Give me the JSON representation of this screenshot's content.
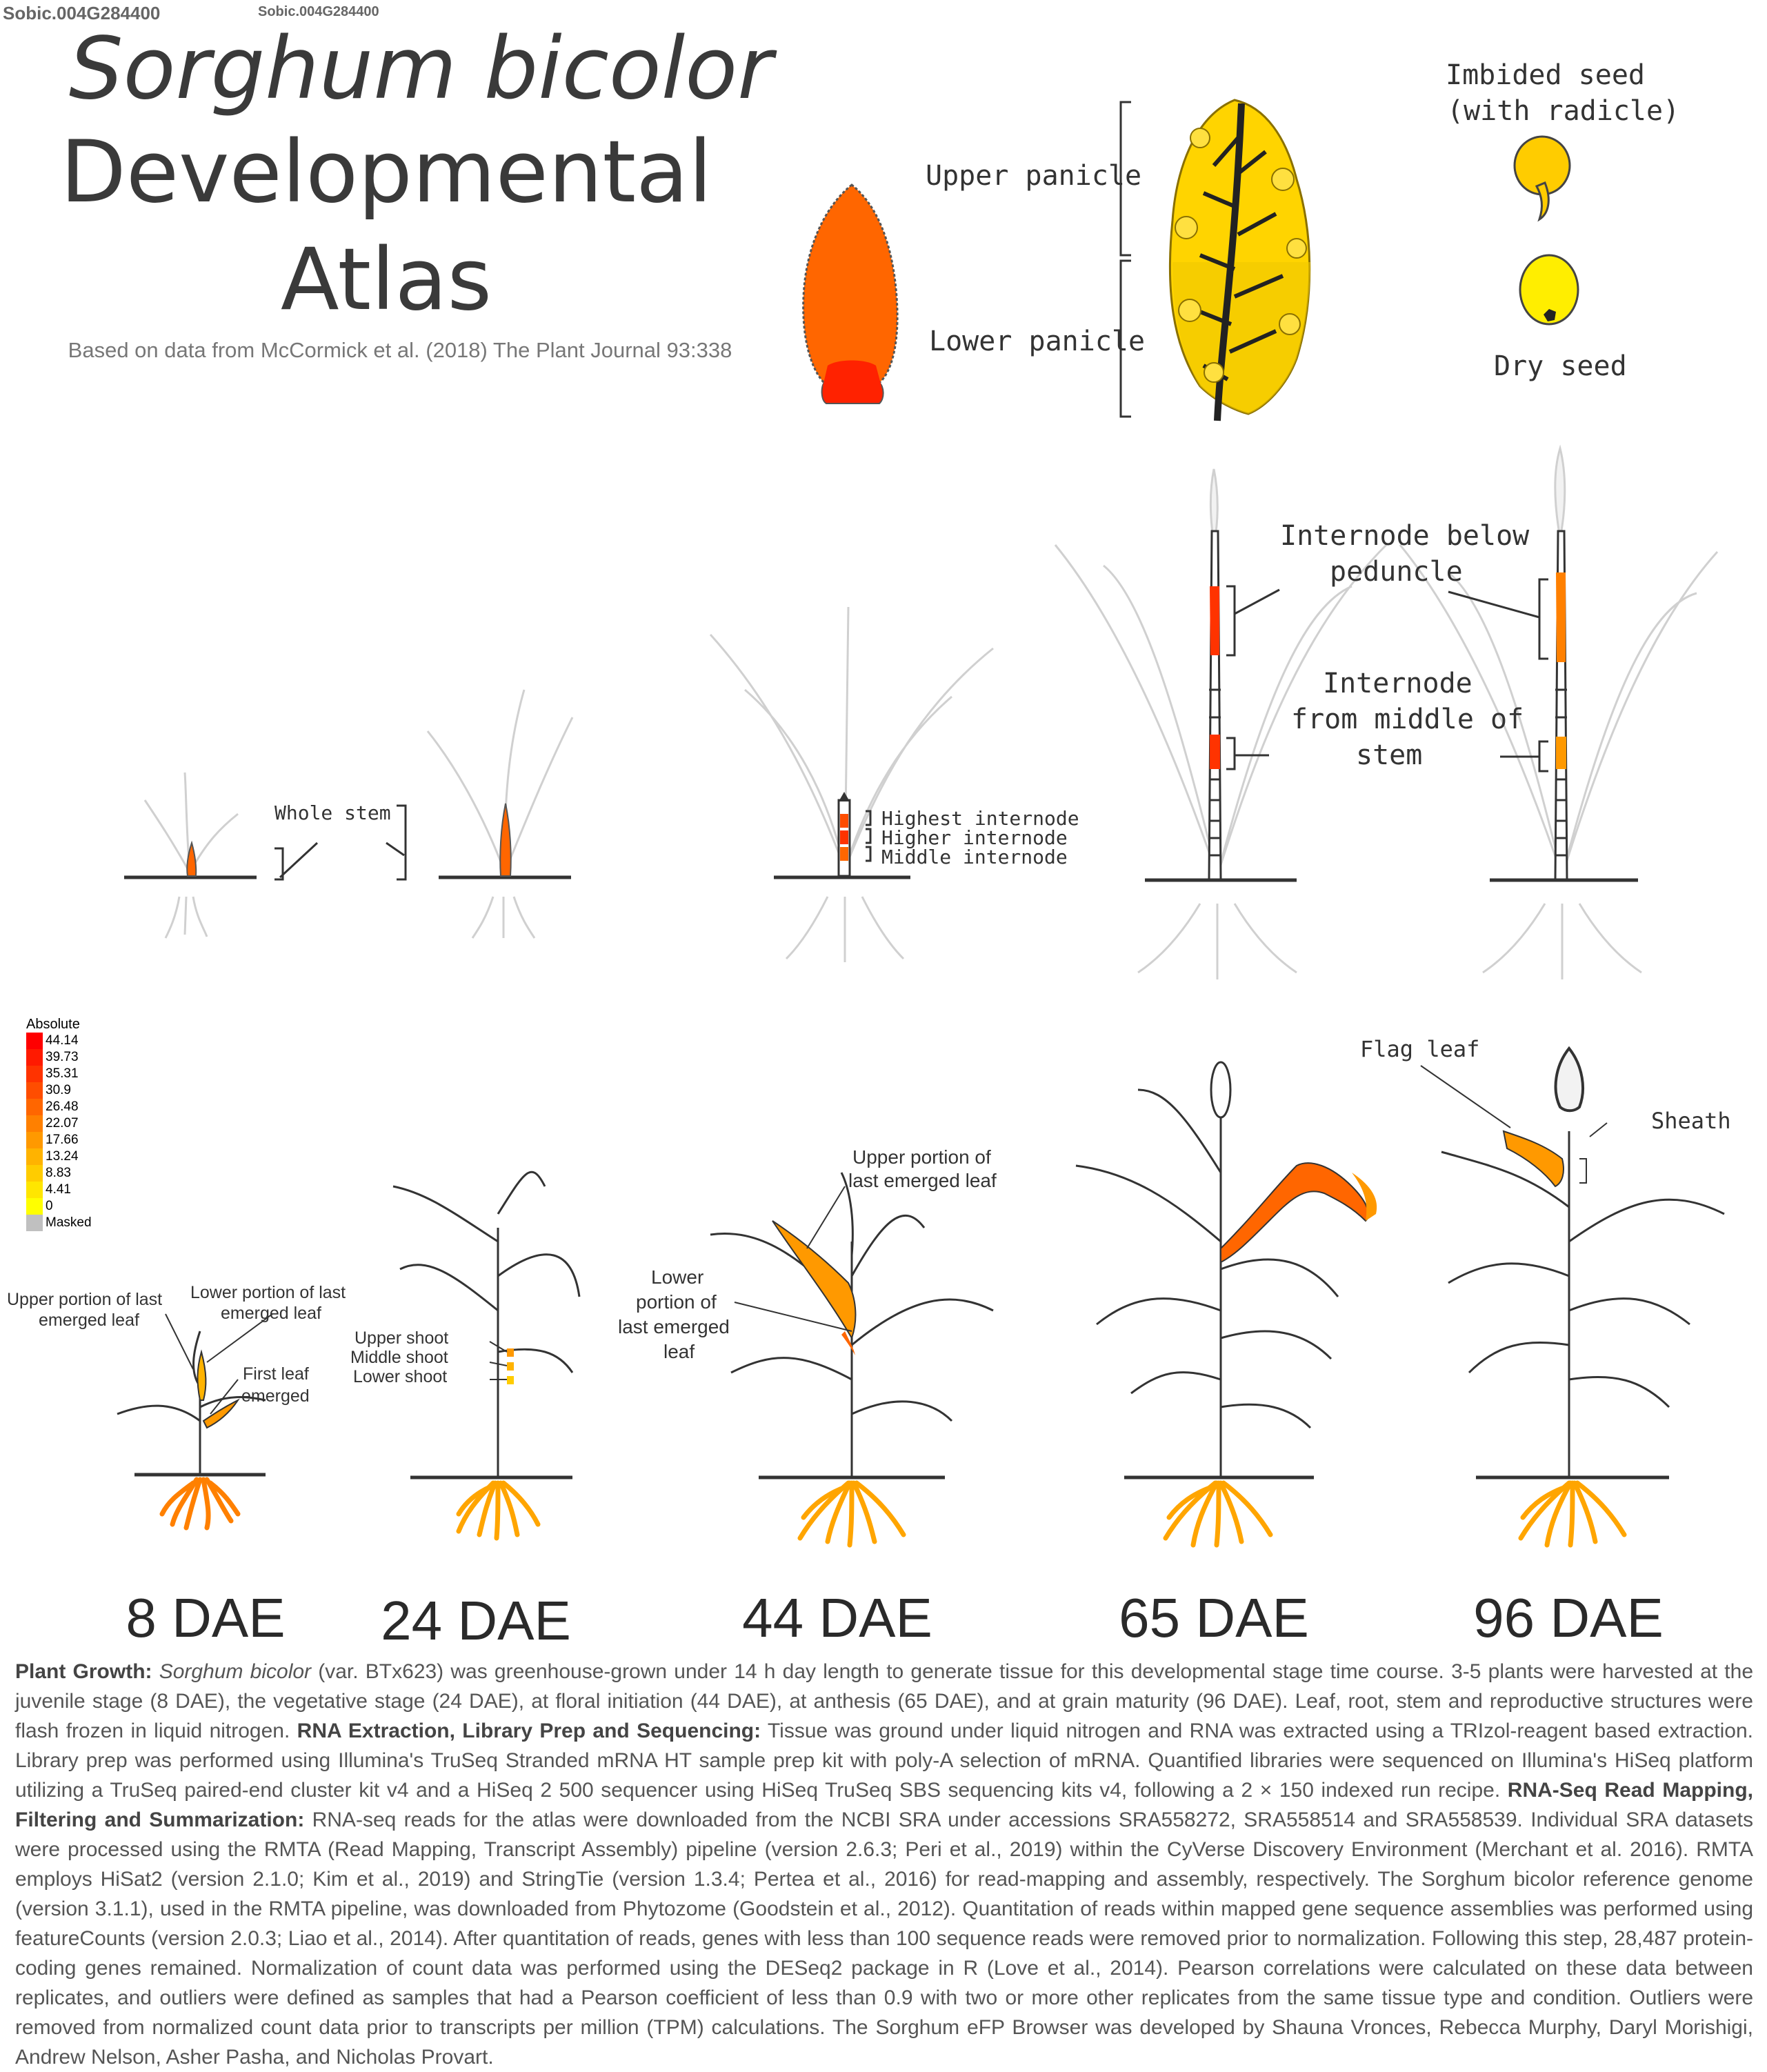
{
  "gene_id": "Sobic.004G284400",
  "gene_id_small": "Sobic.004G284400",
  "title": {
    "species": "Sorghum bicolor",
    "line2": "Developmental",
    "line3": "Atlas",
    "subtitle": "Based on data from McCormick et al. (2018) The Plant Journal 93:338"
  },
  "labels": {
    "upper_panicle": "Upper panicle",
    "lower_panicle": "Lower panicle",
    "imbibed_seed_1": "Imbided seed",
    "imbibed_seed_2": "(with radicle)",
    "dry_seed": "Dry seed",
    "whole_stem": "Whole stem",
    "highest_internode": "Highest internode",
    "higher_internode": "Higher internode",
    "middle_internode": "Middle internode",
    "internode_below_1": "Internode below",
    "internode_below_2": "peduncle",
    "internode_middle_1": "Internode",
    "internode_middle_2": "from middle of",
    "internode_middle_3": "stem",
    "flag_leaf": "Flag leaf",
    "sheath": "Sheath",
    "upper_portion_8_1": "Upper portion of last",
    "upper_portion_8_2": "emerged leaf",
    "lower_portion_8_1": "Lower portion of last",
    "lower_portion_8_2": "emerged leaf",
    "first_leaf_1": "First leaf",
    "first_leaf_2": "emerged",
    "upper_shoot": "Upper shoot",
    "middle_shoot": "Middle shoot",
    "lower_shoot": "Lower shoot",
    "upper_portion_44_1": "Upper portion of",
    "upper_portion_44_2": "last emerged leaf",
    "lower_portion_44_1": "Lower",
    "lower_portion_44_2": "portion of",
    "lower_portion_44_3": "last emerged",
    "lower_portion_44_4": "leaf"
  },
  "stages": [
    "8 DAE",
    "24 DAE",
    "44 DAE",
    "65 DAE",
    "96 DAE"
  ],
  "legend": {
    "title": "Absolute",
    "entries": [
      {
        "value": "44.14",
        "color": "#ff0000"
      },
      {
        "value": "39.73",
        "color": "#ff1a00"
      },
      {
        "value": "35.31",
        "color": "#ff3300"
      },
      {
        "value": "30.9",
        "color": "#ff4d00"
      },
      {
        "value": "26.48",
        "color": "#ff6600"
      },
      {
        "value": "22.07",
        "color": "#ff8000"
      },
      {
        "value": "17.66",
        "color": "#ff9900"
      },
      {
        "value": "13.24",
        "color": "#ffb300"
      },
      {
        "value": "8.83",
        "color": "#ffcc00"
      },
      {
        "value": "4.41",
        "color": "#ffe600"
      },
      {
        "value": "0",
        "color": "#ffff00"
      },
      {
        "value": "Masked",
        "color": "#c0c0c0"
      }
    ]
  },
  "caption": {
    "h1": "Plant Growth:",
    "species": "Sorghum bicolor",
    "p1": " (var. BTx623) was greenhouse-grown under 14 h day length to generate tissue for this developmental stage time course. 3-5 plants were harvested at the juvenile stage (8 DAE), the vegetative stage (24 DAE), at floral initiation (44 DAE), at anthesis (65 DAE), and at grain maturity (96 DAE). Leaf, root, stem and reproductive structures were flash frozen in liquid nitrogen. ",
    "h2": "RNA Extraction, Library Prep and Sequencing:",
    "p2": " Tissue was ground under liquid nitrogen and RNA was extracted using a TRIzol-reagent based extraction. Library prep was performed using Illumina's TruSeq Stranded mRNA HT sample prep kit with poly-A selection of mRNA. Quantified libraries were sequenced on Illumina's HiSeq platform utilizing a TruSeq paired-end cluster kit v4 and a HiSeq 2 500 sequencer using HiSeq TruSeq SBS sequencing kits v4, following a 2 × 150 indexed run recipe. ",
    "h3": "RNA-Seq Read Mapping, Filtering and Summarization:",
    "p3": " RNA-seq reads for the atlas were downloaded from the NCBI SRA under accessions SRA558272, SRA558514 and SRA558539. Individual SRA datasets were processed using the RMTA (Read Mapping, Transcript Assembly) pipeline (version 2.6.3; Peri et al., 2019) within the CyVerse Discovery Environment (Merchant et al. 2016). RMTA employs HiSat2 (version 2.1.0; Kim et al., 2019) and StringTie (version 1.3.4; Pertea et al., 2016) for read-mapping and assembly, respectively. The Sorghum bicolor reference genome (version 3.1.1), used in the RMTA pipeline, was downloaded from Phytozome (Goodstein et al., 2012).  Quantitation of reads within mapped gene sequence assemblies was performed using featureCounts (version 2.0.3; Liao et al., 2014). After quantitation of reads, genes with less than 100 sequence reads were removed prior to normalization.  Following this step, 28,487 protein-coding genes remained. Normalization of count data was performed using the DESeq2 package in R (Love et al., 2014). Pearson correlations were calculated on these data between replicates, and outliers were defined as samples that had a Pearson coefficient of less than 0.9 with two or more other replicates from the same tissue type and condition. Outliers were removed from normalized count data prior to transcripts per million (TPM) calculations. The Sorghum eFP Browser was developed by Shauna Vronces, Rebecca Murphy, Daryl Morishigi, Andrew Nelson, Asher Pasha, and Nicholas Provart."
  }
}
